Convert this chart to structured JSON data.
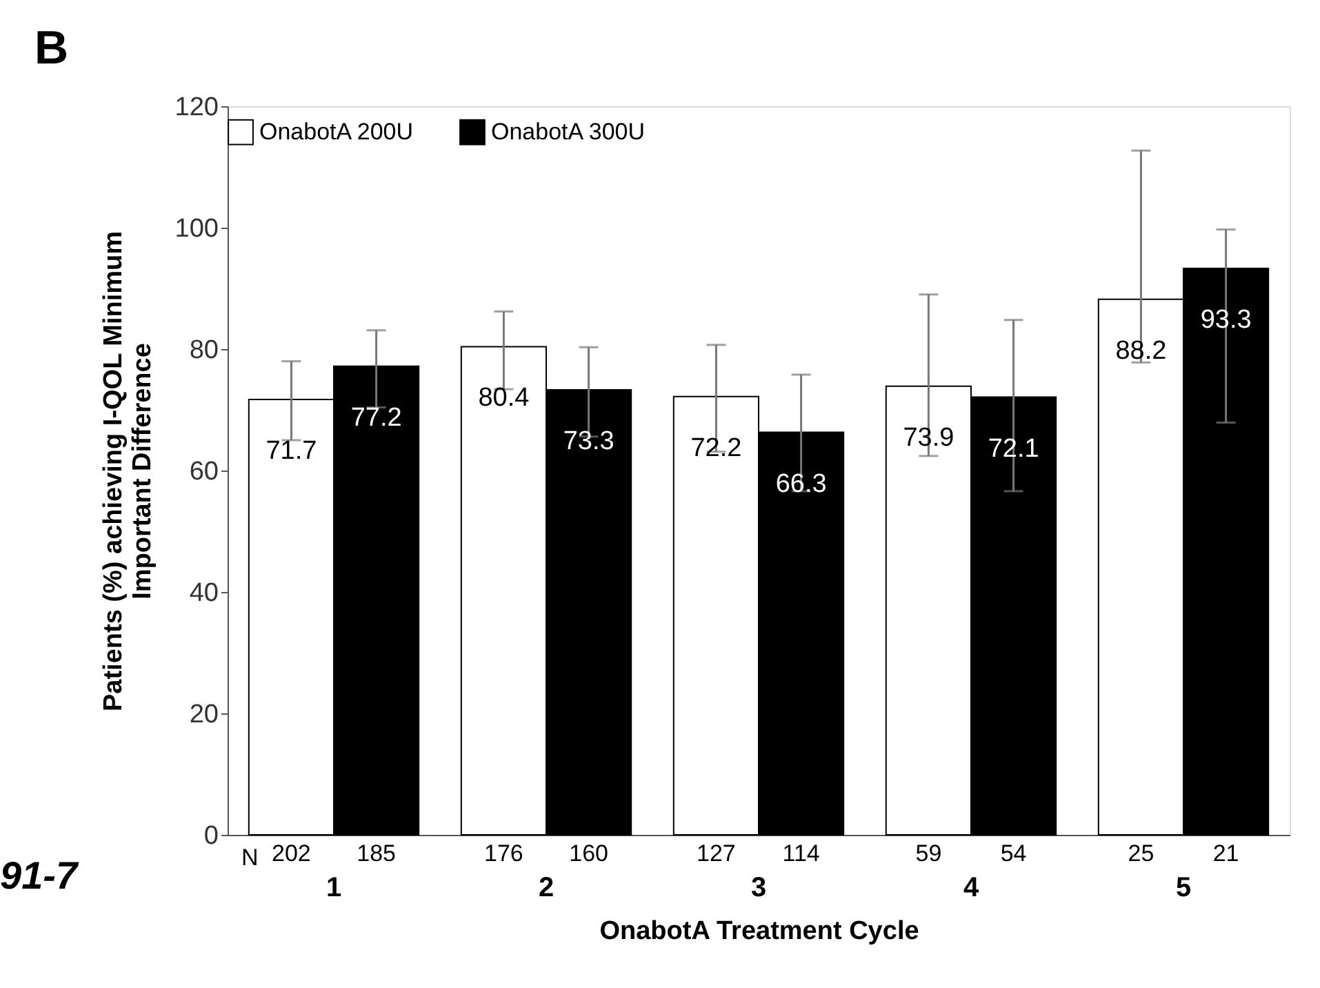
{
  "chart_data": {
    "type": "bar",
    "ylabel": "Patients (%) achieving I-QOL Minimum\nImportant Difference",
    "xlabel": "OnabotA Treatment Cycle",
    "categories": [
      "1",
      "2",
      "3",
      "4",
      "5"
    ],
    "series": [
      {
        "name": "OnabotA 200U",
        "color": "#ffffff",
        "values": [
          71.7,
          80.4,
          72.2,
          73.9,
          88.2
        ],
        "errors": [
          [
            65.0,
            78.0
          ],
          [
            73.4,
            86.2
          ],
          [
            63.1,
            80.7
          ],
          [
            62.4,
            89.0
          ],
          [
            77.8,
            112.7
          ]
        ]
      },
      {
        "name": "OnabotA 300U",
        "color": "#000000",
        "values": [
          77.2,
          73.3,
          66.3,
          72.1,
          93.3
        ],
        "errors": [
          [
            70.4,
            83.1
          ],
          [
            65.6,
            80.3
          ],
          [
            56.6,
            75.8
          ],
          [
            56.6,
            84.8
          ],
          [
            67.9,
            99.7
          ]
        ]
      }
    ],
    "data_labels": true,
    "ylim": [
      0,
      120
    ],
    "yticks": [
      0,
      20,
      40,
      60,
      80,
      100,
      120
    ],
    "grid": false,
    "legend": "top",
    "annotations": [
      "B",
      "91-7",
      "N",
      {
        "text": "202",
        "x": "1",
        "y": 0
      },
      {
        "text": "185",
        "x": "1",
        "y": 0
      },
      {
        "text": "176",
        "x": "2",
        "y": 0
      },
      {
        "text": "160",
        "x": "2",
        "y": 0
      },
      {
        "text": "127",
        "x": "3",
        "y": 0
      },
      {
        "text": "114",
        "x": "3",
        "y": 0
      },
      {
        "text": "59",
        "x": "4",
        "y": 0
      },
      {
        "text": "54",
        "x": "4",
        "y": 0
      },
      {
        "text": "25",
        "x": "5",
        "y": 0
      },
      {
        "text": "21",
        "x": "5",
        "y": 0
      }
    ]
  }
}
